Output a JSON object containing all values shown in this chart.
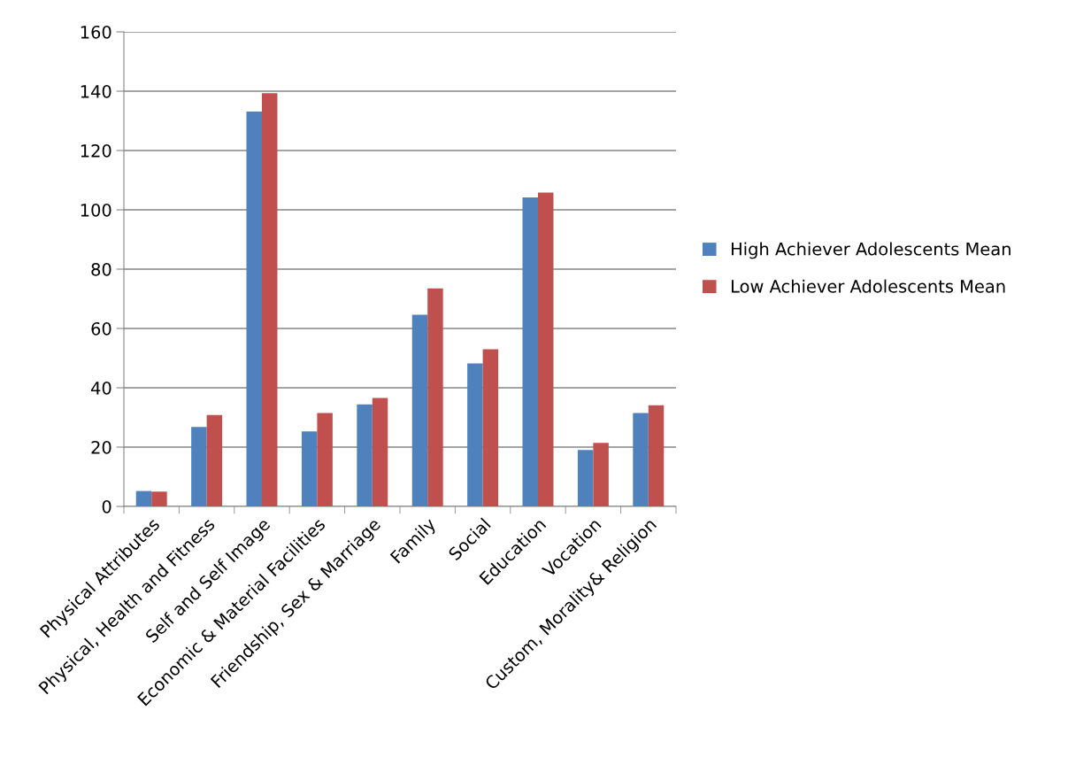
{
  "chart_data": {
    "type": "bar",
    "categories": [
      "Physical Attributes",
      "Physical, Health and Fitness",
      "Self and Self Image",
      "Economic & Material Facilities",
      "Friendship, Sex & Marriage",
      "Family",
      "Social",
      "Education",
      "Vocation",
      "Custom, Morality& Religion"
    ],
    "series": [
      {
        "name": "High Achiever Adolescents Mean",
        "color": "#4f81bd",
        "values": [
          5.2,
          26.8,
          133.1,
          25.3,
          34.4,
          64.6,
          48.2,
          104.2,
          19.0,
          31.5
        ]
      },
      {
        "name": "Low Achiever Adolescents Mean",
        "color": "#c0504d",
        "values": [
          5.0,
          30.8,
          139.3,
          31.5,
          36.6,
          73.5,
          53.0,
          105.8,
          21.4,
          34.1
        ]
      }
    ],
    "ylim": [
      0,
      160
    ],
    "yticks": [
      0,
      20,
      40,
      60,
      80,
      100,
      120,
      140,
      160
    ],
    "grid": "y",
    "legend": "right"
  }
}
